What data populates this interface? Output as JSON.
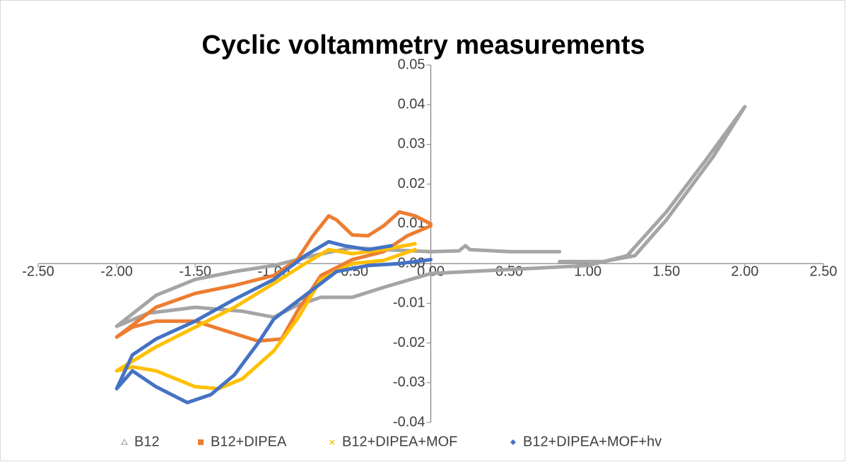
{
  "chart_data": {
    "type": "scatter",
    "title": "Cyclic voltammetry measurements",
    "xlim": [
      -2.5,
      2.5
    ],
    "ylim": [
      -0.04,
      0.05
    ],
    "xticks": [
      {
        "value": -2.5,
        "label": "-2.50"
      },
      {
        "value": -2.0,
        "label": "-2.00"
      },
      {
        "value": -1.5,
        "label": "-1.50"
      },
      {
        "value": -1.0,
        "label": "-1.00"
      },
      {
        "value": -0.5,
        "label": "-0.50"
      },
      {
        "value": 0,
        "label": "0.00"
      },
      {
        "value": 0.5,
        "label": "0.50"
      },
      {
        "value": 1.0,
        "label": "1.00"
      },
      {
        "value": 1.5,
        "label": "1.50"
      },
      {
        "value": 2.0,
        "label": "2.00"
      },
      {
        "value": 2.5,
        "label": "2.50"
      }
    ],
    "yticks": [
      {
        "value": 0.05,
        "label": "0.05"
      },
      {
        "value": 0.04,
        "label": "0.04"
      },
      {
        "value": 0.03,
        "label": "0.03"
      },
      {
        "value": 0.02,
        "label": "0.02"
      },
      {
        "value": 0.01,
        "label": "0.01"
      },
      {
        "value": 0,
        "label": "0.00"
      },
      {
        "value": -0.01,
        "label": "-0.01"
      },
      {
        "value": -0.02,
        "label": "-0.02"
      },
      {
        "value": -0.03,
        "label": "-0.03"
      },
      {
        "value": -0.04,
        "label": "-0.04"
      }
    ],
    "legend": "bottom",
    "series": [
      {
        "name": "B12",
        "color": "#a5a5a5",
        "marker": "triangle",
        "x": [
          0.82,
          0.5,
          0.25,
          0.22,
          0.18,
          0,
          -0.3,
          -0.5,
          -0.75,
          -1.0,
          -1.25,
          -1.5,
          -1.75,
          -2.0,
          -1.8,
          -1.5,
          -1.2,
          -1.0,
          -0.85,
          -0.7,
          -0.5,
          -0.3,
          0,
          0.5,
          1.0,
          1.25,
          1.5,
          1.75,
          2.0,
          1.8,
          1.5,
          1.3,
          1.1,
          0.82
        ],
        "values": [
          0.003,
          0.003,
          0.0035,
          0.0045,
          0.0032,
          0.003,
          0.0035,
          0.004,
          0.002,
          -0.0005,
          -0.002,
          -0.004,
          -0.008,
          -0.0158,
          -0.0125,
          -0.011,
          -0.012,
          -0.0135,
          -0.0105,
          -0.0085,
          -0.0085,
          -0.006,
          -0.0025,
          -0.0015,
          -0.0005,
          0.002,
          0.013,
          0.026,
          0.0395,
          0.027,
          0.011,
          0.002,
          0.0005,
          0.0005
        ]
      },
      {
        "name": "B12+DIPEA",
        "color": "#ed7d31",
        "marker": "square",
        "x": [
          0,
          -0.1,
          -0.2,
          -0.3,
          -0.4,
          -0.5,
          -0.6,
          -0.65,
          -0.75,
          -0.85,
          -1.0,
          -1.25,
          -1.5,
          -1.75,
          -2.0,
          -1.9,
          -1.75,
          -1.5,
          -1.3,
          -1.1,
          -0.95,
          -0.85,
          -0.7,
          -0.5,
          -0.3,
          -0.15,
          0
        ],
        "values": [
          0.01,
          0.012,
          0.013,
          0.0095,
          0.007,
          0.0072,
          0.011,
          0.012,
          0.007,
          0.001,
          -0.003,
          -0.0055,
          -0.0075,
          -0.011,
          -0.0185,
          -0.016,
          -0.0145,
          -0.0145,
          -0.017,
          -0.0195,
          -0.019,
          -0.012,
          -0.003,
          0.001,
          0.003,
          0.007,
          0.0095
        ]
      },
      {
        "name": "B12+DIPEA+MOF",
        "color": "#ffc000",
        "marker": "x",
        "x": [
          -0.1,
          -0.3,
          -0.5,
          -0.65,
          -0.8,
          -1.0,
          -1.25,
          -1.5,
          -1.75,
          -2.0,
          -1.9,
          -1.75,
          -1.5,
          -1.35,
          -1.2,
          -1.0,
          -0.85,
          -0.7,
          -0.5,
          -0.3,
          -0.1
        ],
        "values": [
          0.005,
          0.0035,
          0.0025,
          0.0035,
          0.0,
          -0.005,
          -0.011,
          -0.016,
          -0.021,
          -0.027,
          -0.026,
          -0.027,
          -0.031,
          -0.0315,
          -0.029,
          -0.022,
          -0.014,
          -0.004,
          0.0,
          0.0008,
          0.0035
        ]
      },
      {
        "name": "B12+DIPEA+MOF+hv",
        "color": "#4472c4",
        "marker": "diamond",
        "x": [
          -0.25,
          -0.4,
          -0.55,
          -0.65,
          -0.8,
          -1.0,
          -1.25,
          -1.5,
          -1.75,
          -1.9,
          -2.0,
          -1.9,
          -1.75,
          -1.55,
          -1.4,
          -1.25,
          -1.1,
          -1.0,
          -0.8,
          -0.6,
          -0.4,
          -0.2,
          0
        ],
        "values": [
          0.0045,
          0.0035,
          0.0045,
          0.0055,
          0.002,
          -0.004,
          -0.009,
          -0.0145,
          -0.019,
          -0.023,
          -0.0315,
          -0.027,
          -0.031,
          -0.035,
          -0.033,
          -0.028,
          -0.02,
          -0.014,
          -0.008,
          -0.002,
          -0.0005,
          0.0,
          0.001
        ]
      }
    ]
  }
}
